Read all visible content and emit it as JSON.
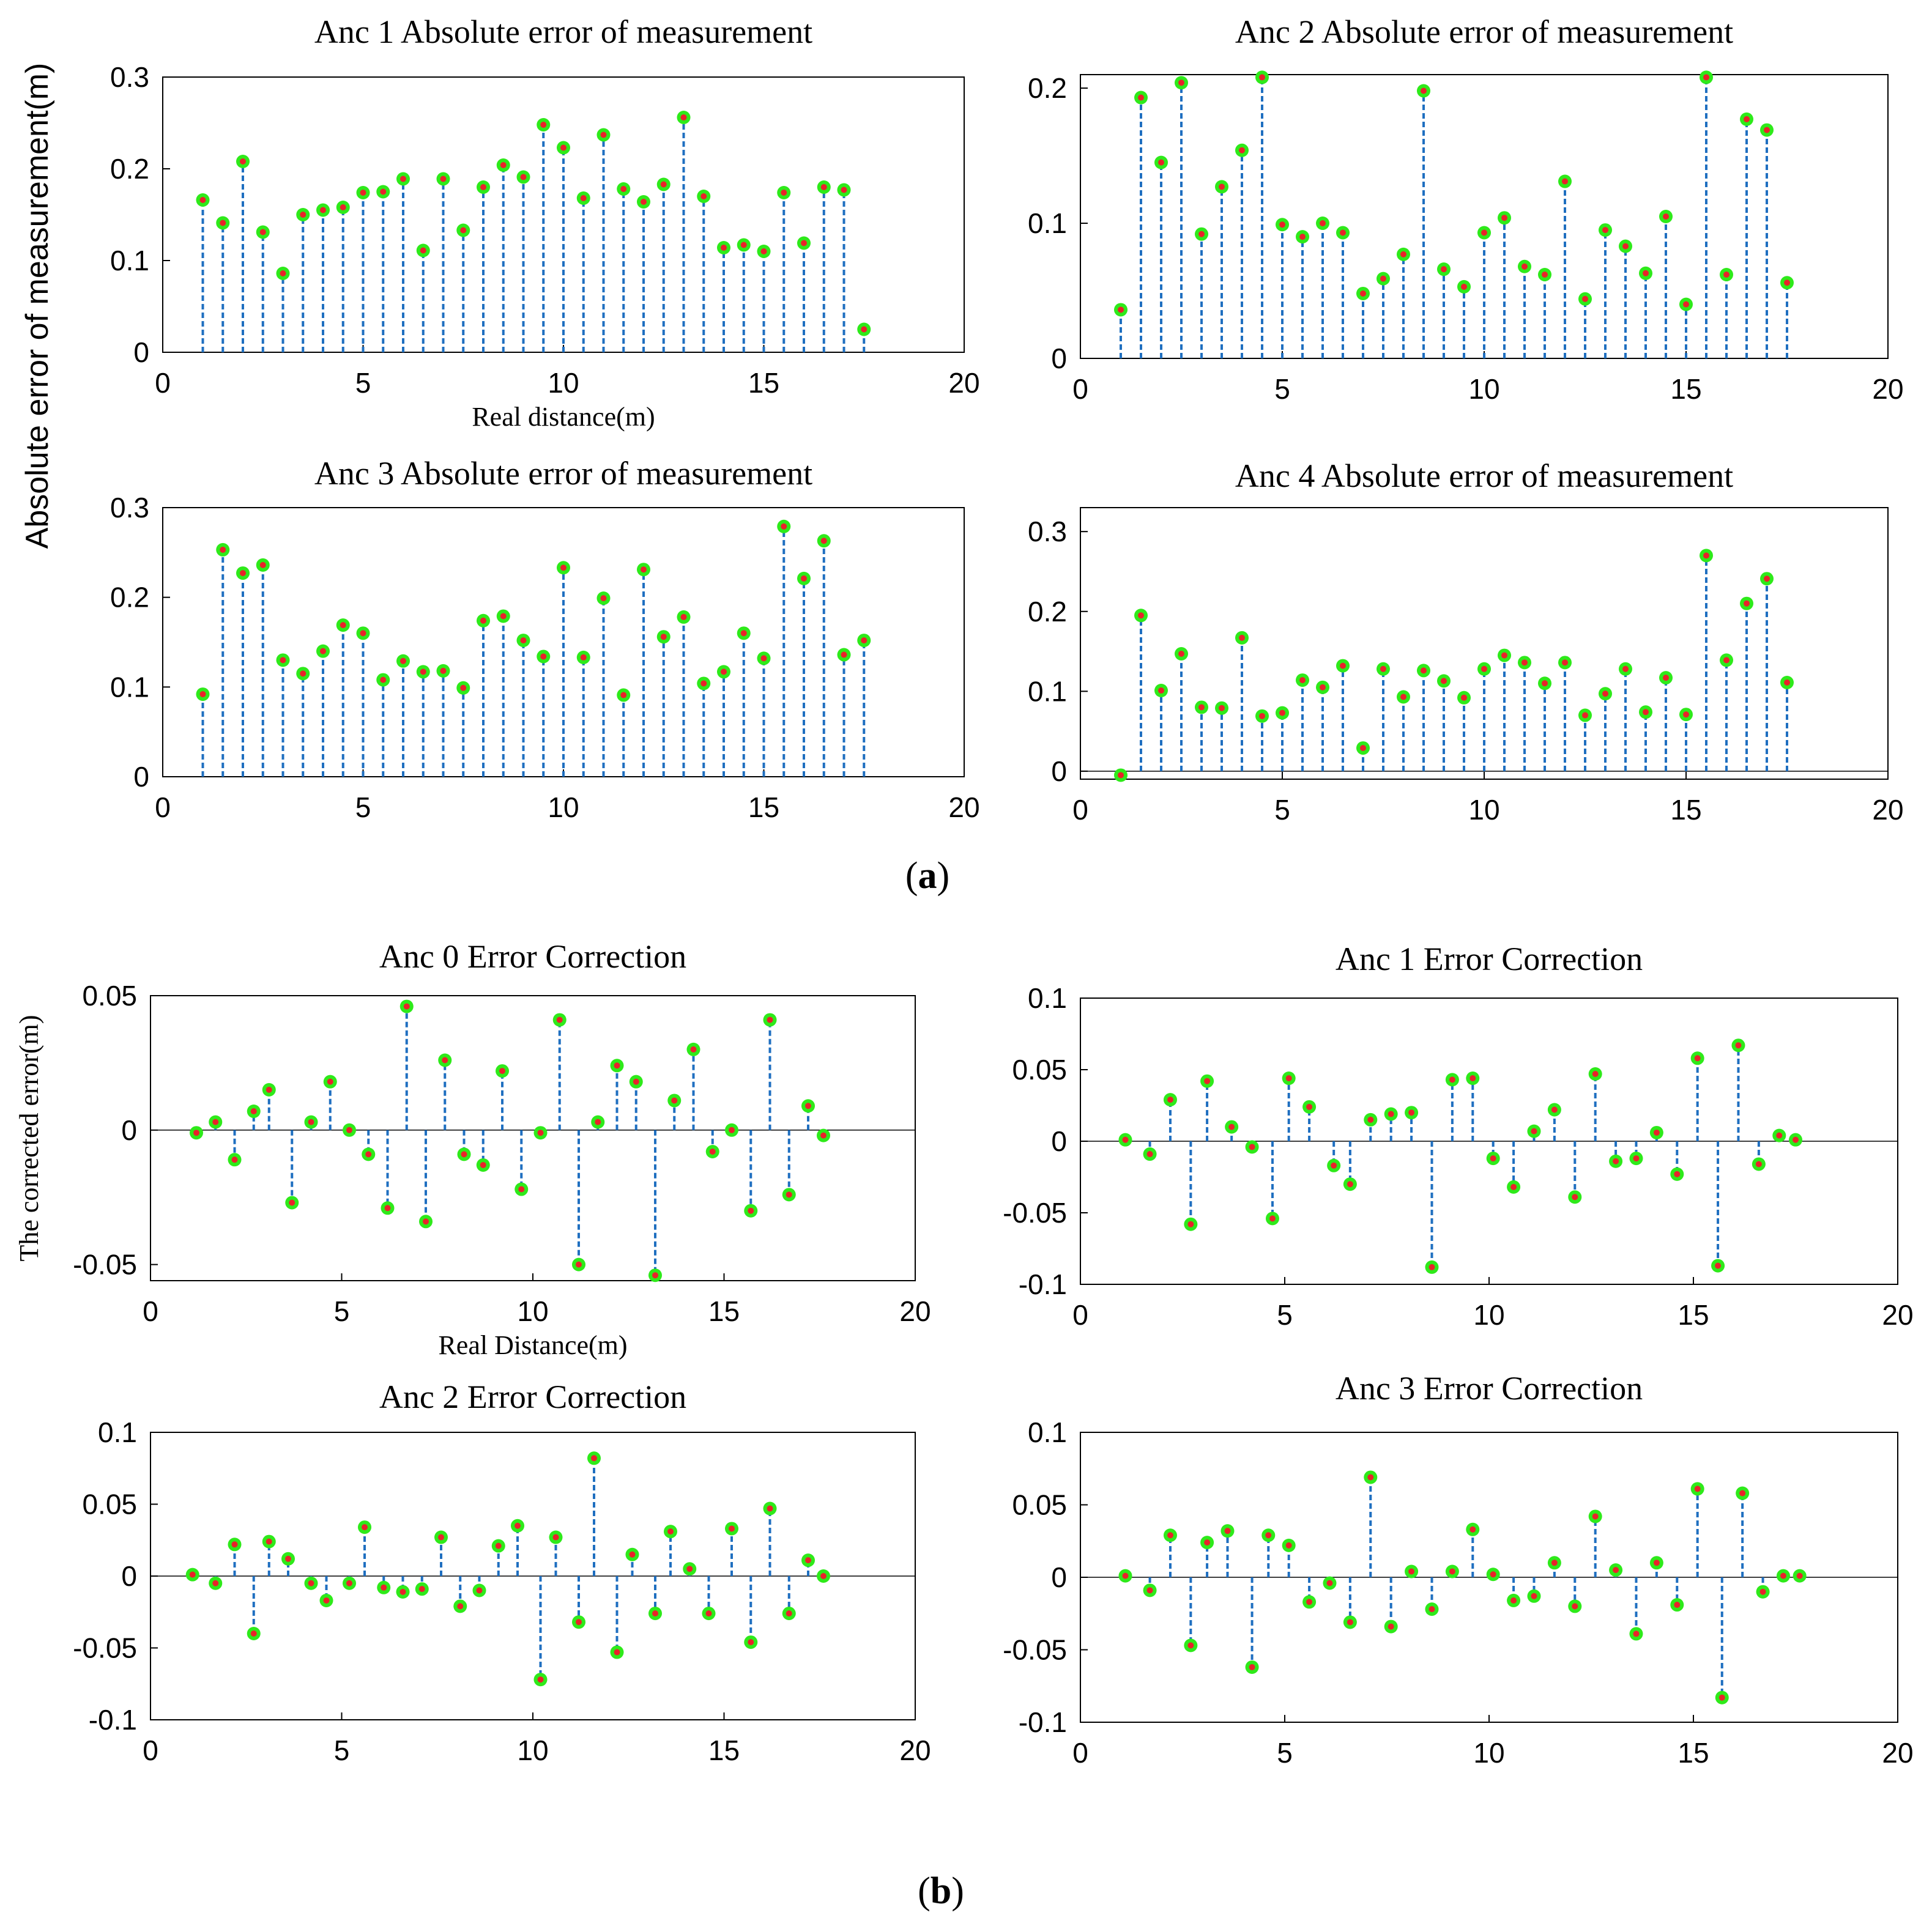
{
  "panel_labels": [
    {
      "open": "(",
      "letter": "a",
      "close": ")"
    },
    {
      "open": "(",
      "letter": "b",
      "close": ")"
    }
  ],
  "chart_data": [
    {
      "type": "stem",
      "title": "Anc 1 Absolute error of measurement",
      "xlabel": "Real distance(m)",
      "ylabel": "Absolute error of measurement(m)",
      "xlim": [
        0,
        20
      ],
      "ylim": [
        0,
        0.3
      ],
      "xticks": [
        0,
        5,
        10,
        15,
        20
      ],
      "xtick_labels": [
        "0",
        "5",
        "10",
        "15",
        "20"
      ],
      "yticks": [
        0,
        0.1,
        0.2,
        0.3
      ],
      "ytick_labels": [
        "0",
        "0.1",
        "0.2",
        "0.3"
      ],
      "x": [
        1,
        1.5,
        2,
        2.5,
        3,
        3.5,
        4,
        4.5,
        5,
        5.5,
        6,
        6.5,
        7,
        7.5,
        8,
        8.5,
        9,
        9.5,
        10,
        10.5,
        11,
        11.5,
        12,
        12.5,
        13,
        13.5,
        14,
        14.5,
        15,
        15.5,
        16,
        16.5,
        17,
        17.5
      ],
      "y": [
        0.166,
        0.141,
        0.208,
        0.131,
        0.086,
        0.15,
        0.155,
        0.158,
        0.174,
        0.175,
        0.189,
        0.111,
        0.189,
        0.133,
        0.18,
        0.204,
        0.191,
        0.248,
        0.223,
        0.168,
        0.237,
        0.178,
        0.164,
        0.183,
        0.256,
        0.17,
        0.114,
        0.117,
        0.11,
        0.174,
        0.119,
        0.18,
        0.177,
        0.025
      ]
    },
    {
      "type": "stem",
      "title": "Anc 2 Absolute error of measurement",
      "xlabel": "",
      "ylabel": "",
      "xlim": [
        0,
        20
      ],
      "ylim": [
        0,
        0.21
      ],
      "xticks": [
        0,
        5,
        10,
        15,
        20
      ],
      "xtick_labels": [
        "0",
        "5",
        "10",
        "15",
        "20"
      ],
      "yticks": [
        0,
        0.1,
        0.2
      ],
      "ytick_labels": [
        "0",
        "0.1",
        "0.2"
      ],
      "x": [
        1,
        1.5,
        2,
        2.5,
        3,
        3.5,
        4,
        4.5,
        5,
        5.5,
        6,
        6.5,
        7,
        7.5,
        8,
        8.5,
        9,
        9.5,
        10,
        10.5,
        11,
        11.5,
        12,
        12.5,
        13,
        13.5,
        14,
        14.5,
        15,
        15.5,
        16,
        16.5,
        17,
        17.5
      ],
      "y": [
        0.036,
        0.193,
        0.145,
        0.204,
        0.092,
        0.127,
        0.154,
        0.208,
        0.099,
        0.09,
        0.1,
        0.093,
        0.048,
        0.059,
        0.077,
        0.198,
        0.066,
        0.053,
        0.093,
        0.104,
        0.068,
        0.062,
        0.131,
        0.044,
        0.095,
        0.083,
        0.063,
        0.105,
        0.04,
        0.208,
        0.062,
        0.177,
        0.169,
        0.056
      ]
    },
    {
      "type": "stem",
      "title": "Anc 3 Absolute error of measurement",
      "xlabel": "",
      "ylabel": "",
      "xlim": [
        0,
        20
      ],
      "ylim": [
        0,
        0.3
      ],
      "xticks": [
        0,
        5,
        10,
        15,
        20
      ],
      "xtick_labels": [
        "0",
        "5",
        "10",
        "15",
        "20"
      ],
      "yticks": [
        0,
        0.1,
        0.2,
        0.3
      ],
      "ytick_labels": [
        "0",
        "0.1",
        "0.2",
        "0.3"
      ],
      "x": [
        1,
        1.5,
        2,
        2.5,
        3,
        3.5,
        4,
        4.5,
        5,
        5.5,
        6,
        6.5,
        7,
        7.5,
        8,
        8.5,
        9,
        9.5,
        10,
        10.5,
        11,
        11.5,
        12,
        12.5,
        13,
        13.5,
        14,
        14.5,
        15,
        15.5,
        16,
        16.5,
        17,
        17.5
      ],
      "y": [
        0.092,
        0.253,
        0.227,
        0.236,
        0.13,
        0.115,
        0.14,
        0.169,
        0.16,
        0.108,
        0.129,
        0.117,
        0.118,
        0.099,
        0.174,
        0.179,
        0.152,
        0.134,
        0.233,
        0.133,
        0.199,
        0.091,
        0.231,
        0.156,
        0.178,
        0.104,
        0.117,
        0.16,
        0.132,
        0.279,
        0.221,
        0.263,
        0.136,
        0.152
      ]
    },
    {
      "type": "stem",
      "title": "Anc 4 Absolute error of measurement",
      "xlabel": "",
      "ylabel": "",
      "xlim": [
        0,
        20
      ],
      "ylim": [
        -0.01,
        0.33
      ],
      "xticks": [
        0,
        5,
        10,
        15,
        20
      ],
      "xtick_labels": [
        "0",
        "5",
        "10",
        "15",
        "20"
      ],
      "yticks": [
        0,
        0.1,
        0.2,
        0.3
      ],
      "ytick_labels": [
        "0",
        "0.1",
        "0.2",
        "0.3"
      ],
      "x": [
        1,
        1.5,
        2,
        2.5,
        3,
        3.5,
        4,
        4.5,
        5,
        5.5,
        6,
        6.5,
        7,
        7.5,
        8,
        8.5,
        9,
        9.5,
        10,
        10.5,
        11,
        11.5,
        12,
        12.5,
        13,
        13.5,
        14,
        14.5,
        15,
        15.5,
        16,
        16.5,
        17,
        17.5
      ],
      "y": [
        -0.005,
        0.195,
        0.101,
        0.147,
        0.08,
        0.079,
        0.167,
        0.069,
        0.073,
        0.114,
        0.105,
        0.132,
        0.029,
        0.128,
        0.093,
        0.126,
        0.113,
        0.092,
        0.128,
        0.145,
        0.136,
        0.11,
        0.136,
        0.07,
        0.097,
        0.128,
        0.074,
        0.117,
        0.071,
        0.27,
        0.139,
        0.21,
        0.241,
        0.111
      ]
    },
    {
      "type": "stem",
      "title": "Anc 0 Error Correction",
      "xlabel": "Real Distance(m)",
      "ylabel": "The corrected error(m)",
      "xlim": [
        0,
        20
      ],
      "ylim": [
        -0.056,
        0.05
      ],
      "xticks": [
        0,
        5,
        10,
        15,
        20
      ],
      "xtick_labels": [
        "0",
        "5",
        "10",
        "15",
        "20"
      ],
      "yticks": [
        -0.05,
        0,
        0.05
      ],
      "ytick_labels": [
        "-0.05",
        "0",
        "0.05"
      ],
      "x": [
        1.2,
        1.7,
        2.2,
        2.7,
        3.1,
        3.7,
        4.2,
        4.7,
        5.2,
        5.7,
        6.2,
        6.7,
        7.2,
        7.7,
        8.2,
        8.7,
        9.2,
        9.7,
        10.2,
        10.7,
        11.2,
        11.7,
        12.2,
        12.7,
        13.2,
        13.7,
        14.2,
        14.7,
        15.2,
        15.7,
        16.2,
        16.7,
        17.2,
        17.6
      ],
      "y": [
        -0.001,
        0.003,
        -0.011,
        0.007,
        0.015,
        -0.027,
        0.003,
        0.018,
        0.0,
        -0.009,
        -0.029,
        0.046,
        -0.034,
        0.026,
        -0.009,
        -0.013,
        0.022,
        -0.022,
        -0.001,
        0.041,
        -0.05,
        0.003,
        0.024,
        0.018,
        -0.054,
        0.011,
        0.03,
        -0.008,
        0.0,
        -0.03,
        0.041,
        -0.024,
        0.009,
        -0.002
      ]
    },
    {
      "type": "stem",
      "title": "Anc 1 Error Correction",
      "xlabel": "",
      "ylabel": "",
      "xlim": [
        0,
        20
      ],
      "ylim": [
        -0.1,
        0.1
      ],
      "xticks": [
        0,
        5,
        10,
        15,
        20
      ],
      "xtick_labels": [
        "0",
        "5",
        "10",
        "15",
        "20"
      ],
      "yticks": [
        -0.1,
        -0.05,
        0,
        0.05,
        0.1
      ],
      "ytick_labels": [
        "-0.1",
        "-0.05",
        "0",
        "0.05",
        "0.1"
      ],
      "x": [
        1.1,
        1.7,
        2.2,
        2.7,
        3.1,
        3.7,
        4.2,
        4.7,
        5.1,
        5.6,
        6.2,
        6.6,
        7.1,
        7.6,
        8.1,
        8.6,
        9.1,
        9.6,
        10.1,
        10.6,
        11.1,
        11.6,
        12.1,
        12.6,
        13.1,
        13.6,
        14.1,
        14.6,
        15.1,
        15.6,
        16.1,
        16.6,
        17.1,
        17.5
      ],
      "y": [
        0.001,
        -0.009,
        0.029,
        -0.058,
        0.042,
        0.01,
        -0.004,
        -0.054,
        0.044,
        0.024,
        -0.017,
        -0.03,
        0.015,
        0.019,
        0.02,
        -0.088,
        0.043,
        0.044,
        -0.012,
        -0.032,
        0.007,
        0.022,
        -0.039,
        0.047,
        -0.014,
        -0.012,
        0.006,
        -0.023,
        0.058,
        -0.087,
        0.067,
        -0.016,
        0.004,
        0.001
      ]
    },
    {
      "type": "stem",
      "title": "Anc 2 Error Correction",
      "xlabel": "",
      "ylabel": "",
      "xlim": [
        0,
        20
      ],
      "ylim": [
        -0.1,
        0.1
      ],
      "xticks": [
        0,
        5,
        10,
        15,
        20
      ],
      "xtick_labels": [
        "0",
        "5",
        "10",
        "15",
        "20"
      ],
      "yticks": [
        -0.1,
        -0.05,
        0,
        0.05,
        0.1
      ],
      "ytick_labels": [
        "-0.1",
        "-0.05",
        "0",
        "0.05",
        "0.1"
      ],
      "x": [
        1.1,
        1.7,
        2.2,
        2.7,
        3.1,
        3.6,
        4.2,
        4.6,
        5.2,
        5.6,
        6.1,
        6.6,
        7.1,
        7.6,
        8.1,
        8.6,
        9.1,
        9.6,
        10.2,
        10.6,
        11.2,
        11.6,
        12.2,
        12.6,
        13.2,
        13.6,
        14.1,
        14.6,
        15.2,
        15.7,
        16.2,
        16.7,
        17.2,
        17.6
      ],
      "y": [
        0.001,
        -0.005,
        0.022,
        -0.04,
        0.024,
        0.012,
        -0.005,
        -0.017,
        -0.005,
        0.034,
        -0.008,
        -0.011,
        -0.009,
        0.027,
        -0.021,
        -0.01,
        0.021,
        0.035,
        -0.072,
        0.027,
        -0.032,
        0.082,
        -0.053,
        0.015,
        -0.026,
        0.031,
        0.005,
        -0.026,
        0.033,
        -0.046,
        0.047,
        -0.026,
        0.011,
        0.0
      ]
    },
    {
      "type": "stem",
      "title": "Anc 3 Error Correction",
      "xlabel": "",
      "ylabel": "",
      "xlim": [
        0,
        20
      ],
      "ylim": [
        -0.1,
        0.1
      ],
      "xticks": [
        0,
        5,
        10,
        15,
        20
      ],
      "xtick_labels": [
        "0",
        "5",
        "10",
        "15",
        "20"
      ],
      "yticks": [
        -0.1,
        -0.05,
        0,
        0.05,
        0.1
      ],
      "ytick_labels": [
        "-0.1",
        "-0.05",
        "0",
        "0.05",
        "0.1"
      ],
      "x": [
        1.1,
        1.7,
        2.2,
        2.7,
        3.1,
        3.6,
        4.2,
        4.6,
        5.1,
        5.6,
        6.1,
        6.6,
        7.1,
        7.6,
        8.1,
        8.6,
        9.1,
        9.6,
        10.1,
        10.6,
        11.1,
        11.6,
        12.1,
        12.6,
        13.1,
        13.6,
        14.1,
        14.6,
        15.1,
        15.7,
        16.2,
        16.7,
        17.2,
        17.6
      ],
      "y": [
        0.001,
        -0.009,
        0.029,
        -0.047,
        0.024,
        0.032,
        -0.062,
        0.029,
        0.022,
        -0.017,
        -0.004,
        -0.031,
        0.069,
        -0.034,
        0.004,
        -0.022,
        0.004,
        0.033,
        0.002,
        -0.016,
        -0.013,
        0.01,
        -0.02,
        0.042,
        0.005,
        -0.039,
        0.01,
        -0.019,
        0.061,
        -0.083,
        0.058,
        -0.01,
        0.001,
        0.001
      ]
    }
  ]
}
